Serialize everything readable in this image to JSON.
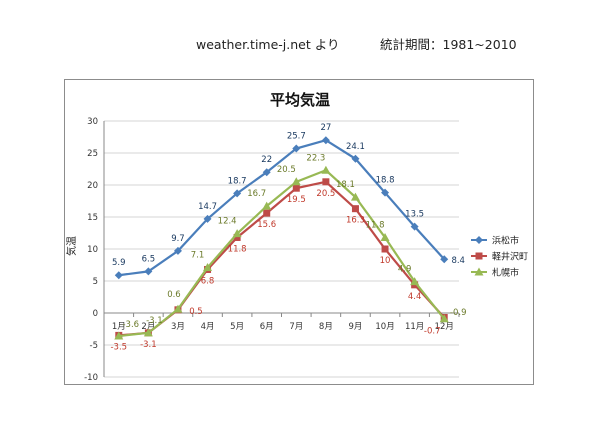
{
  "header": {
    "source": "weather.time-j.net より",
    "period": "統計期間：1981~2010"
  },
  "chart_data": {
    "type": "line",
    "title": "平均気温",
    "ylabel": "気温",
    "xlabel": "",
    "ylim": [
      -10,
      30
    ],
    "yticks": [
      -10,
      -5,
      0,
      5,
      10,
      15,
      20,
      25,
      30
    ],
    "ytick_labels": [
      "-10",
      "-5",
      "0",
      "5",
      "10",
      "15",
      "20",
      "25",
      "30"
    ],
    "grid": true,
    "legend": "right",
    "categories": [
      "1月",
      "2月",
      "3月",
      "4月",
      "5月",
      "6月",
      "7月",
      "8月",
      "9月",
      "10月",
      "11月",
      "12月"
    ],
    "series": [
      {
        "name": "浜松市",
        "color": "#4a7ebb",
        "marker": "diamond",
        "values": [
          5.9,
          6.5,
          9.7,
          14.7,
          18.7,
          22,
          25.7,
          27,
          24.1,
          18.8,
          13.5,
          8.4
        ],
        "labels": [
          "5.9",
          "6.5",
          "9.7",
          "14.7",
          "18.7",
          "22",
          "25.7",
          "27",
          "24.1",
          "18.8",
          "13.5",
          "8.4"
        ]
      },
      {
        "name": "軽井沢町",
        "color": "#be4b48",
        "marker": "square",
        "values": [
          -3.5,
          -3.1,
          0.5,
          6.8,
          11.8,
          15.6,
          19.5,
          20.5,
          16.3,
          10,
          4.4,
          -0.7
        ],
        "labels": [
          "-3.5",
          "-3.1",
          "0.5",
          "6.8",
          "11.8",
          "15.6",
          "19.5",
          "20.5",
          "16.3",
          "10",
          "4.4",
          "-0.7"
        ]
      },
      {
        "name": "札幌市",
        "color": "#98b954",
        "marker": "triangle",
        "values": [
          -3.6,
          -3.1,
          0.6,
          7.1,
          12.4,
          16.7,
          20.5,
          22.3,
          18.1,
          11.8,
          4.9,
          -0.9
        ],
        "labels": [
          "-3.6",
          "-3.1",
          "0.6",
          "7.1",
          "12.4",
          "16.7",
          "20.5",
          "22.3",
          "18.1",
          "11.8",
          "4.9",
          "-0.9"
        ]
      }
    ]
  }
}
